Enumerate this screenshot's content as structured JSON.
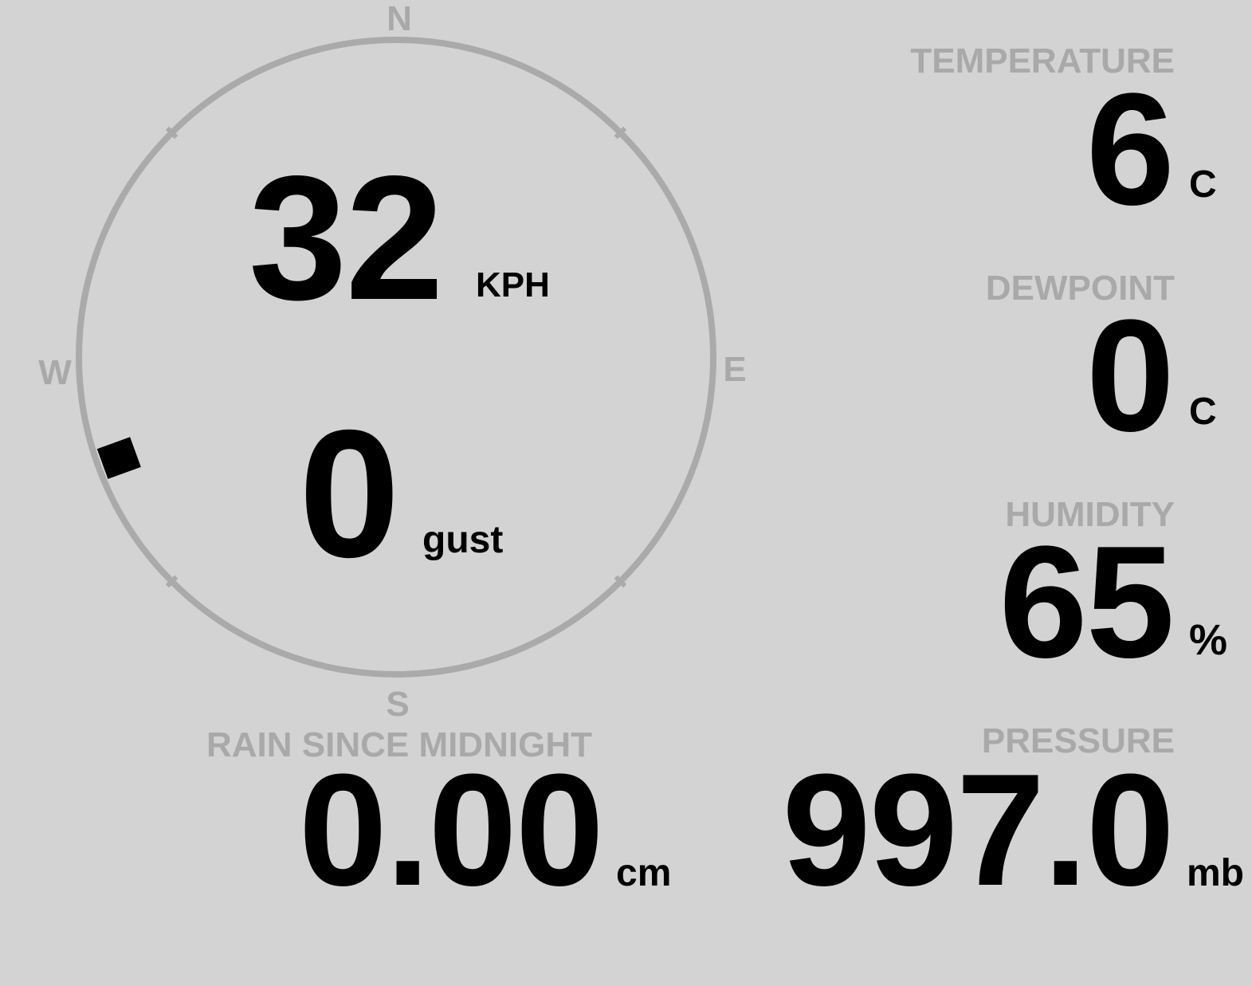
{
  "wind": {
    "speed": "32",
    "speed_unit": "KPH",
    "gust": "0",
    "gust_unit": "gust",
    "direction_degrees": 250,
    "compass": {
      "n": "N",
      "e": "E",
      "s": "S",
      "w": "W"
    },
    "ring_color": "#aaaaaa",
    "marker_color": "#000000"
  },
  "temperature": {
    "label": "TEMPERATURE",
    "value": "6",
    "unit": "C"
  },
  "dewpoint": {
    "label": "DEWPOINT",
    "value": "0",
    "unit": "C"
  },
  "humidity": {
    "label": "HUMIDITY",
    "value": "65",
    "unit": "%"
  },
  "pressure": {
    "label": "PRESSURE",
    "value": "997.0",
    "unit": "mb"
  },
  "rain": {
    "label": "RAIN SINCE MIDNIGHT",
    "value": "0.00",
    "unit": "cm"
  }
}
